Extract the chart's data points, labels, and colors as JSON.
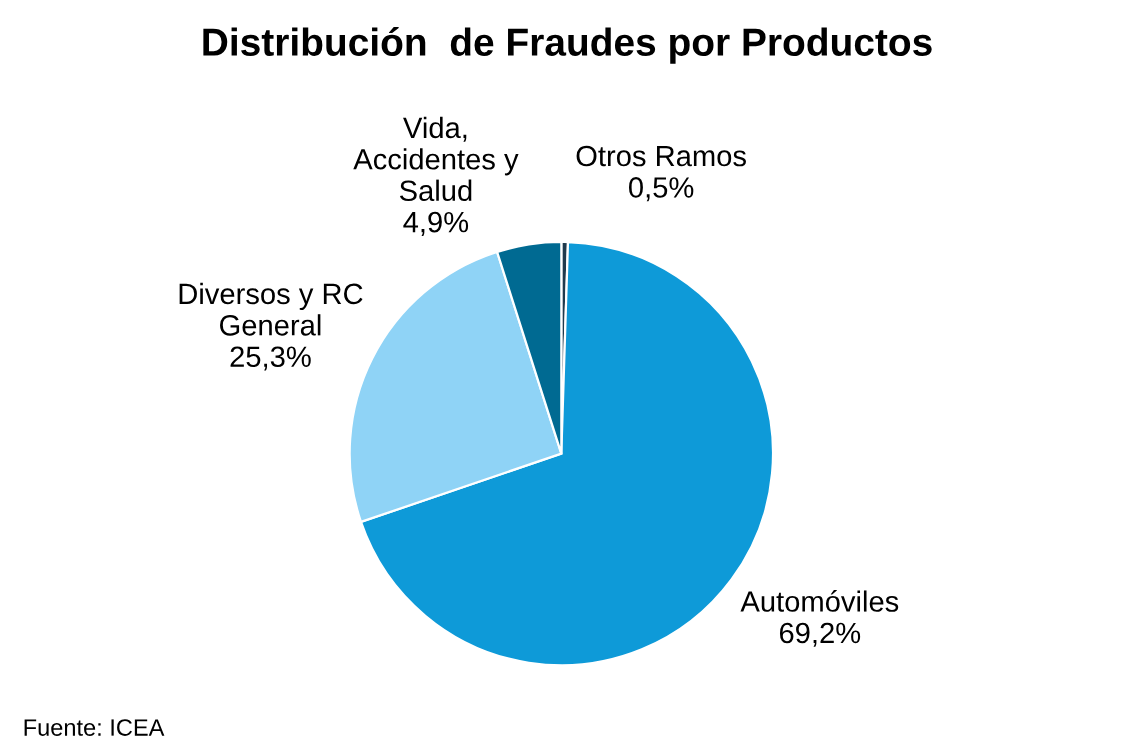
{
  "chart_data": {
    "type": "pie",
    "title": "Distribución  de Fraudes por Productos",
    "categories": [
      "Otros Ramos",
      "Automóviles",
      "Diversos y RC\nGeneral",
      "Vida,\nAccidentes y\nSalud"
    ],
    "values": [
      0.5,
      69.2,
      25.3,
      4.9
    ],
    "value_labels": [
      "0,5%",
      "69,2%",
      "25,3%",
      "4,9%"
    ],
    "colors": [
      "#1f3a4d",
      "#0e9ad8",
      "#8fd3f6",
      "#006a92"
    ],
    "annotations": [
      "Fuente: ICEA"
    ]
  }
}
